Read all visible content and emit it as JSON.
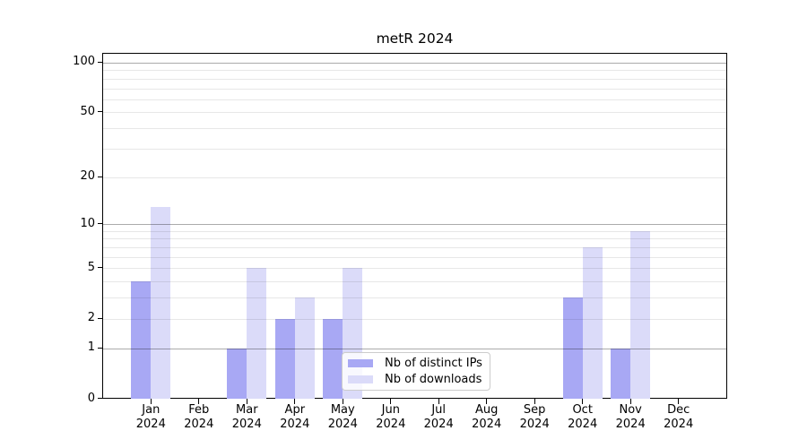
{
  "figure": {
    "title": "metR 2024"
  },
  "colors": {
    "background": "#ffffff",
    "axis": "#000000",
    "text": "#000000",
    "grid_major": "#ababab",
    "grid_minor": "#e7e7e7",
    "legend_border": "#cccccc",
    "bar_distinct_ips": "#a8a8f4",
    "bar_downloads": "#dbdbf9"
  },
  "legend": {
    "items": [
      {
        "label": "Nb of distinct IPs",
        "color": "#a8a8f4"
      },
      {
        "label": "Nb of downloads",
        "color": "#dbdbf9"
      }
    ]
  },
  "chart_data": {
    "type": "bar",
    "title": "metR 2024",
    "categories": [
      "Jan 2024",
      "Feb 2024",
      "Mar 2024",
      "Apr 2024",
      "May 2024",
      "Jun 2024",
      "Jul 2024",
      "Aug 2024",
      "Sep 2024",
      "Oct 2024",
      "Nov 2024",
      "Dec 2024"
    ],
    "series": [
      {
        "name": "Nb of distinct IPs",
        "color": "#a8a8f4",
        "values": [
          4,
          0,
          1,
          2,
          2,
          0,
          0,
          0,
          0,
          3,
          1,
          0
        ]
      },
      {
        "name": "Nb of downloads",
        "color": "#dbdbf9",
        "values": [
          13,
          0,
          5,
          3,
          5,
          0,
          0,
          0,
          0,
          7,
          9,
          0
        ]
      }
    ],
    "xlabel": "",
    "ylabel": "",
    "yscale": "log1p",
    "ylim": [
      0,
      113
    ],
    "yticks": [
      0,
      1,
      2,
      5,
      10,
      20,
      50,
      100
    ],
    "gridlines": {
      "major": [
        1,
        10,
        100
      ],
      "minor": [
        2,
        3,
        4,
        5,
        6,
        7,
        8,
        9,
        20,
        30,
        40,
        50,
        60,
        70,
        80,
        90
      ]
    },
    "grid": "on",
    "legend_position": "lower center"
  }
}
